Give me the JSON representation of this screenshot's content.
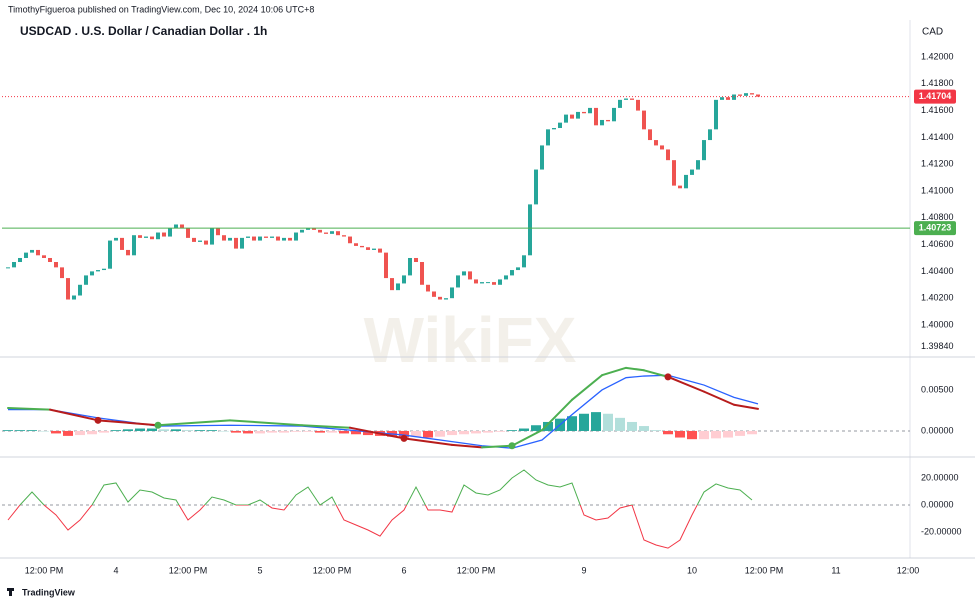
{
  "header": {
    "publisher": "TimothyFigueroa published on TradingView.com, Dec 10, 2024 10:06 UTC+8",
    "title": "USDCAD . U.S. Dollar / Canadian Dollar . 1h",
    "currency": "CAD",
    "watermark": "WikiFX",
    "footer": "TradingView"
  },
  "chart_data": [
    {
      "type": "candlestick",
      "close": [
        1.4043,
        1.4047,
        1.405,
        1.4054,
        1.4056,
        1.4052,
        1.405,
        1.4047,
        1.4043,
        1.4035,
        1.4019,
        1.4022,
        1.403,
        1.4037,
        1.404,
        1.4041,
        1.4042,
        1.4063,
        1.4065,
        1.4056,
        1.4052,
        1.4067,
        1.4065,
        1.4066,
        1.4064,
        1.4069,
        1.4066,
        1.4072,
        1.4075,
        1.4072,
        1.4065,
        1.4062,
        1.4063,
        1.406,
        1.4072,
        1.4067,
        1.4063,
        1.4065,
        1.4057,
        1.4065,
        1.4066,
        1.4063,
        1.4066,
        1.4065,
        1.4066,
        1.4063,
        1.4065,
        1.4063,
        1.4069,
        1.4071,
        1.4072,
        1.4071,
        1.4069,
        1.4068,
        1.407,
        1.4067,
        1.4066,
        1.4061,
        1.4059,
        1.4058,
        1.4056,
        1.4057,
        1.4054,
        1.4035,
        1.4026,
        1.4031,
        1.4037,
        1.405,
        1.4047,
        1.403,
        1.4025,
        1.4021,
        1.4019,
        1.402,
        1.4028,
        1.4037,
        1.404,
        1.4034,
        1.4031,
        1.4032,
        1.4032,
        1.403,
        1.4034,
        1.4037,
        1.4041,
        1.4043,
        1.4052,
        1.409,
        1.4116,
        1.4134,
        1.4146,
        1.4147,
        1.4151,
        1.4157,
        1.4154,
        1.4159,
        1.4158,
        1.4162,
        1.4149,
        1.4153,
        1.4152,
        1.4162,
        1.4168,
        1.4169,
        1.4168,
        1.416,
        1.4146,
        1.4138,
        1.4134,
        1.4131,
        1.4123,
        1.4104,
        1.4102,
        1.4112,
        1.4116,
        1.4123,
        1.4138,
        1.4146,
        1.4168,
        1.417,
        1.4168,
        1.4172,
        1.4171,
        1.4173,
        1.4172,
        1.41704
      ],
      "colors": {
        "up": "#26a69a",
        "down": "#ef5350"
      },
      "xlim": [
        -1,
        150
      ],
      "xticks": [
        {
          "value": 6,
          "label": "12:00 PM"
        },
        {
          "value": 18,
          "label": "4"
        },
        {
          "value": 30,
          "label": "12:00 PM"
        },
        {
          "value": 42,
          "label": "5"
        },
        {
          "value": 54,
          "label": "12:00 PM"
        },
        {
          "value": 66,
          "label": "6"
        },
        {
          "value": 78,
          "label": "12:00 PM"
        },
        {
          "value": 96,
          "label": "9"
        },
        {
          "value": 114,
          "label": "10"
        },
        {
          "value": 126,
          "label": "12:00 PM"
        },
        {
          "value": 138,
          "label": "11"
        },
        {
          "value": 150,
          "label": "12:00"
        }
      ],
      "ylim": [
        1.39776,
        1.42276
      ],
      "yticks": [
        {
          "value": 1.3984,
          "label": "1.39840"
        },
        {
          "value": 1.4,
          "label": "1.40000"
        },
        {
          "value": 1.402,
          "label": "1.40200"
        },
        {
          "value": 1.404,
          "label": "1.40400"
        },
        {
          "value": 1.406,
          "label": "1.40600"
        },
        {
          "value": 1.408,
          "label": "1.40800"
        },
        {
          "value": 1.41,
          "label": "1.41000"
        },
        {
          "value": 1.412,
          "label": "1.41200"
        },
        {
          "value": 1.414,
          "label": "1.41400"
        },
        {
          "value": 1.416,
          "label": "1.41600"
        },
        {
          "value": 1.418,
          "label": "1.41800"
        },
        {
          "value": 1.42,
          "label": "1.42000"
        }
      ],
      "price_lines": [
        {
          "value": 1.41704,
          "color": "#f23645",
          "dashed": true
        },
        {
          "value": 1.40723,
          "color": "#4caf50",
          "dashed": false
        }
      ]
    },
    {
      "type": "macd",
      "x": [
        0,
        7,
        15,
        25,
        37,
        49,
        57,
        66,
        74,
        79,
        84,
        89,
        94,
        99,
        103,
        106,
        110,
        116,
        121,
        125
      ],
      "macd": [
        0.0028,
        0.0026,
        0.0013,
        0.0007,
        0.0013,
        0.0007,
        0.0004,
        -0.0009,
        -0.0017,
        -0.002,
        -0.0018,
        0.0001,
        0.0038,
        0.0068,
        0.0077,
        0.0074,
        0.0066,
        0.0048,
        0.0032,
        0.0027
      ],
      "signal": [
        0.0026,
        0.0026,
        0.0016,
        0.0006,
        0.0007,
        0.0006,
        0.0001,
        -0.0005,
        -0.0013,
        -0.0018,
        -0.0021,
        -0.0011,
        0.002,
        0.005,
        0.0065,
        0.0067,
        0.0068,
        0.0056,
        0.0041,
        0.0033
      ],
      "hist_x": [
        0,
        2,
        4,
        6,
        8,
        10,
        12,
        14,
        16,
        18,
        20,
        22,
        24,
        26,
        28,
        30,
        32,
        34,
        36,
        38,
        40,
        42,
        44,
        46,
        48,
        50,
        52,
        54,
        56,
        58,
        60,
        62,
        64,
        66,
        68,
        70,
        72,
        74,
        76,
        78,
        80,
        82,
        84,
        86,
        88,
        90,
        92,
        94,
        96,
        98,
        100,
        102,
        104,
        106,
        108,
        110,
        112,
        114,
        116,
        118,
        120,
        122,
        124
      ],
      "hist": [
        0.0001,
        0.0001,
        0.0001,
        0,
        -0.0003,
        -0.0006,
        -0.0005,
        -0.0004,
        -0.0002,
        0.0001,
        0.0002,
        0.0003,
        0.0003,
        0.0002,
        0.0002,
        0.0001,
        0.0001,
        0.0001,
        0,
        -0.0002,
        -0.0003,
        -0.0003,
        -0.0002,
        -0.0002,
        -0.0001,
        -0.0001,
        -0.0002,
        -0.0002,
        -0.0003,
        -0.0004,
        -0.0005,
        -0.0006,
        -0.0007,
        -0.0008,
        -0.0007,
        -0.0008,
        -0.0007,
        -0.0005,
        -0.0004,
        -0.0003,
        -0.0002,
        -0.0001,
        0.0001,
        0.0003,
        0.0007,
        0.0011,
        0.0015,
        0.0018,
        0.0021,
        0.0023,
        0.0021,
        0.0016,
        0.0011,
        0.0006,
        0.0001,
        -0.0004,
        -0.0008,
        -0.001,
        -0.001,
        -0.0009,
        -0.0008,
        -0.0006,
        -0.0004
      ],
      "colors": {
        "macd_up": "#4caf50",
        "macd_down": "#b71c1c",
        "signal": "#2962ff",
        "hist_up": "#26a69a",
        "hist_up_fading": "#b2dfdb",
        "hist_down": "#ff5252",
        "hist_down_fading": "#ffcdd2"
      },
      "ylim": [
        -0.00293,
        0.0089
      ],
      "yticks": [
        {
          "value": 0,
          "label": "0.00000"
        },
        {
          "value": 0.005,
          "label": "0.00500"
        }
      ]
    },
    {
      "type": "oscillator",
      "x": [
        0,
        2,
        4,
        6,
        8,
        10,
        12,
        14,
        16,
        18,
        20,
        22,
        24,
        26,
        28,
        30,
        32,
        34,
        36,
        38,
        40,
        42,
        44,
        46,
        48,
        50,
        52,
        54,
        56,
        58,
        60,
        62,
        64,
        66,
        68,
        70,
        72,
        74,
        76,
        78,
        80,
        82,
        84,
        86,
        88,
        90,
        92,
        94,
        96,
        98,
        100,
        102,
        104,
        106,
        108,
        110,
        112,
        114,
        116,
        118,
        120,
        122,
        124
      ],
      "values": [
        -11.1,
        0,
        9.6,
        0,
        -7.4,
        -18.5,
        -11.1,
        0,
        14.8,
        16.3,
        2.2,
        11.1,
        9.6,
        5.2,
        3.7,
        -11.1,
        -3.7,
        5.9,
        3.7,
        0,
        0,
        3.7,
        -2.2,
        -3.7,
        7.4,
        13.3,
        0,
        5.9,
        -11.1,
        -14.8,
        -18.5,
        -23.0,
        -11.1,
        -3.7,
        13.3,
        -3.7,
        -3.7,
        -5.2,
        14.8,
        8.9,
        7.4,
        11.1,
        20.0,
        25.9,
        18.5,
        14.8,
        13.3,
        16.3,
        -7.4,
        -11.1,
        -9.6,
        -2.2,
        0,
        -25.9,
        -29.6,
        -31.9,
        -25.9,
        -7.4,
        9.6,
        15.6,
        12.6,
        11.1,
        3.7
      ],
      "colors": {
        "above": "#4caf50",
        "below": "#f23645"
      },
      "ylim": [
        -37,
        33.3
      ],
      "yticks": [
        {
          "value": -20,
          "label": "-20.00000"
        },
        {
          "value": 0,
          "label": "0.00000"
        },
        {
          "value": 20,
          "label": "20.00000"
        }
      ]
    }
  ]
}
